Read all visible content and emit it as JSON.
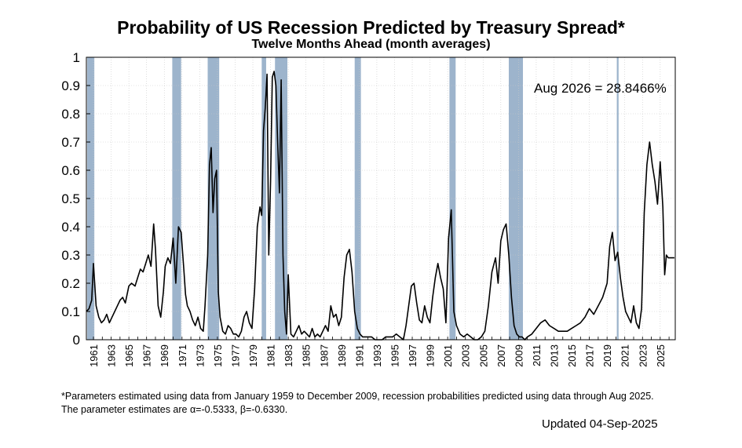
{
  "title": "Probability of US Recession Predicted by Treasury Spread*",
  "subtitle": "Twelve Months Ahead (month averages)",
  "annotation": "Aug 2026 = 28.8466%",
  "footnote_line1": "*Parameters estimated using data from January 1959 to December 2009, recession probabilities predicted using data through Aug 2025.",
  "footnote_line2": "The parameter estimates are α=-0.5333, β=-0.6330.",
  "updated": "Updated 04-Sep-2025",
  "colors": {
    "line": "#000000",
    "recession_band": "#9db4cc",
    "grid": "#c8c8c8"
  },
  "chart_data": {
    "type": "line",
    "title": "Probability of US Recession Predicted by Treasury Spread*",
    "subtitle": "Twelve Months Ahead (month averages)",
    "xlim": [
      1960.2,
      2026.7
    ],
    "ylim": [
      0,
      1
    ],
    "yticks": [
      "0",
      "0.1",
      "0.2",
      "0.3",
      "0.4",
      "0.5",
      "0.6",
      "0.7",
      "0.8",
      "0.9",
      "1"
    ],
    "xticks": [
      "1961",
      "1963",
      "1965",
      "1967",
      "1969",
      "1971",
      "1973",
      "1975",
      "1977",
      "1979",
      "1981",
      "1983",
      "1985",
      "1987",
      "1989",
      "1991",
      "1993",
      "1995",
      "1997",
      "1999",
      "2001",
      "2003",
      "2005",
      "2007",
      "2009",
      "2011",
      "2013",
      "2015",
      "2017",
      "2019",
      "2021",
      "2023",
      "2025"
    ],
    "grid": true,
    "recessions": [
      [
        1960.3,
        1961.1
      ],
      [
        1969.9,
        1970.9
      ],
      [
        1973.9,
        1975.2
      ],
      [
        1980.0,
        1980.5
      ],
      [
        1981.5,
        1982.9
      ],
      [
        1990.5,
        1991.2
      ],
      [
        2001.2,
        2001.9
      ],
      [
        2007.9,
        2009.5
      ],
      [
        2020.1,
        2020.3
      ]
    ],
    "series": [
      {
        "x": [
          1960.2,
          1960.5,
          1960.8,
          1961.0,
          1961.3,
          1961.6,
          1961.9,
          1962.2,
          1962.5,
          1962.8,
          1963.1,
          1963.4,
          1963.7,
          1964.0,
          1964.3,
          1964.6,
          1965.0,
          1965.3,
          1965.7,
          1966.0,
          1966.3,
          1966.6,
          1966.9,
          1967.2,
          1967.5,
          1967.8,
          1968.0,
          1968.3,
          1968.6,
          1968.9,
          1969.1,
          1969.4,
          1969.7,
          1970.0,
          1970.3,
          1970.6,
          1970.9,
          1971.2,
          1971.4,
          1971.6,
          1971.9,
          1972.2,
          1972.5,
          1972.8,
          1973.1,
          1973.4,
          1973.6,
          1973.9,
          1974.1,
          1974.3,
          1974.5,
          1974.7,
          1974.9,
          1975.1,
          1975.3,
          1975.6,
          1975.9,
          1976.2,
          1976.5,
          1976.8,
          1977.1,
          1977.4,
          1977.7,
          1978.0,
          1978.3,
          1978.6,
          1978.9,
          1979.2,
          1979.5,
          1979.8,
          1980.0,
          1980.2,
          1980.4,
          1980.6,
          1980.8,
          1981.0,
          1981.2,
          1981.4,
          1981.6,
          1981.8,
          1982.0,
          1982.2,
          1982.4,
          1982.6,
          1982.8,
          1983.0,
          1983.3,
          1983.6,
          1983.9,
          1984.2,
          1984.5,
          1984.8,
          1985.1,
          1985.4,
          1985.7,
          1986.0,
          1986.3,
          1986.6,
          1986.9,
          1987.2,
          1987.5,
          1987.8,
          1988.1,
          1988.4,
          1988.7,
          1989.0,
          1989.3,
          1989.6,
          1989.9,
          1990.2,
          1990.5,
          1990.8,
          1991.1,
          1991.4,
          1991.7,
          1992.0,
          1992.4,
          1992.8,
          1993.2,
          1993.6,
          1994.0,
          1994.4,
          1994.8,
          1995.2,
          1995.6,
          1996.0,
          1996.3,
          1996.6,
          1996.9,
          1997.2,
          1997.5,
          1997.8,
          1998.1,
          1998.4,
          1998.7,
          1999.0,
          1999.3,
          1999.6,
          1999.9,
          2000.2,
          2000.5,
          2000.8,
          2001.1,
          2001.4,
          2001.7,
          2002.0,
          2002.4,
          2002.8,
          2003.2,
          2003.6,
          2004.0,
          2004.4,
          2004.8,
          2005.2,
          2005.6,
          2006.0,
          2006.4,
          2006.7,
          2007.0,
          2007.3,
          2007.6,
          2007.9,
          2008.2,
          2008.5,
          2008.8,
          2009.1,
          2009.4,
          2009.7,
          2010.0,
          2010.5,
          2011.0,
          2011.5,
          2012.0,
          2012.5,
          2013.0,
          2013.5,
          2014.0,
          2014.5,
          2015.0,
          2015.5,
          2016.0,
          2016.5,
          2017.0,
          2017.5,
          2018.0,
          2018.5,
          2019.0,
          2019.3,
          2019.6,
          2019.9,
          2020.2,
          2020.5,
          2020.8,
          2021.1,
          2021.4,
          2021.7,
          2022.0,
          2022.3,
          2022.6,
          2022.9,
          2023.2,
          2023.5,
          2023.8,
          2024.1,
          2024.4,
          2024.7,
          2025.0,
          2025.3,
          2025.5,
          2025.7,
          2025.9,
          2026.2,
          2026.6
        ],
        "values": [
          0.1,
          0.11,
          0.14,
          0.27,
          0.12,
          0.08,
          0.06,
          0.07,
          0.09,
          0.06,
          0.08,
          0.1,
          0.12,
          0.14,
          0.15,
          0.13,
          0.19,
          0.2,
          0.19,
          0.22,
          0.25,
          0.24,
          0.27,
          0.3,
          0.26,
          0.41,
          0.32,
          0.12,
          0.08,
          0.17,
          0.26,
          0.29,
          0.27,
          0.36,
          0.2,
          0.4,
          0.38,
          0.25,
          0.16,
          0.12,
          0.1,
          0.07,
          0.05,
          0.08,
          0.04,
          0.03,
          0.12,
          0.3,
          0.62,
          0.68,
          0.45,
          0.57,
          0.6,
          0.17,
          0.08,
          0.03,
          0.02,
          0.05,
          0.04,
          0.02,
          0.02,
          0.01,
          0.03,
          0.08,
          0.1,
          0.06,
          0.04,
          0.18,
          0.4,
          0.47,
          0.44,
          0.74,
          0.82,
          0.94,
          0.3,
          0.56,
          0.93,
          0.95,
          0.9,
          0.7,
          0.52,
          0.92,
          0.3,
          0.1,
          0.02,
          0.23,
          0.02,
          0.01,
          0.03,
          0.05,
          0.02,
          0.03,
          0.02,
          0.01,
          0.04,
          0.01,
          0.02,
          0.01,
          0.03,
          0.05,
          0.03,
          0.12,
          0.08,
          0.09,
          0.05,
          0.08,
          0.22,
          0.3,
          0.32,
          0.24,
          0.1,
          0.04,
          0.02,
          0.01,
          0.01,
          0.01,
          0.01,
          0.0,
          0.0,
          0.0,
          0.01,
          0.01,
          0.01,
          0.02,
          0.01,
          0.0,
          0.05,
          0.12,
          0.19,
          0.2,
          0.13,
          0.07,
          0.06,
          0.12,
          0.08,
          0.06,
          0.15,
          0.22,
          0.27,
          0.22,
          0.18,
          0.06,
          0.36,
          0.46,
          0.1,
          0.05,
          0.02,
          0.01,
          0.02,
          0.01,
          0.0,
          0.0,
          0.01,
          0.03,
          0.12,
          0.24,
          0.29,
          0.2,
          0.35,
          0.39,
          0.41,
          0.3,
          0.15,
          0.05,
          0.02,
          0.01,
          0.01,
          0.0,
          0.01,
          0.02,
          0.04,
          0.06,
          0.07,
          0.05,
          0.04,
          0.03,
          0.03,
          0.03,
          0.04,
          0.05,
          0.06,
          0.08,
          0.11,
          0.09,
          0.12,
          0.15,
          0.2,
          0.33,
          0.38,
          0.28,
          0.31,
          0.22,
          0.15,
          0.1,
          0.08,
          0.06,
          0.12,
          0.06,
          0.04,
          0.11,
          0.45,
          0.62,
          0.7,
          0.62,
          0.56,
          0.48,
          0.63,
          0.47,
          0.23,
          0.3,
          0.29,
          0.29,
          0.29
        ]
      }
    ]
  }
}
